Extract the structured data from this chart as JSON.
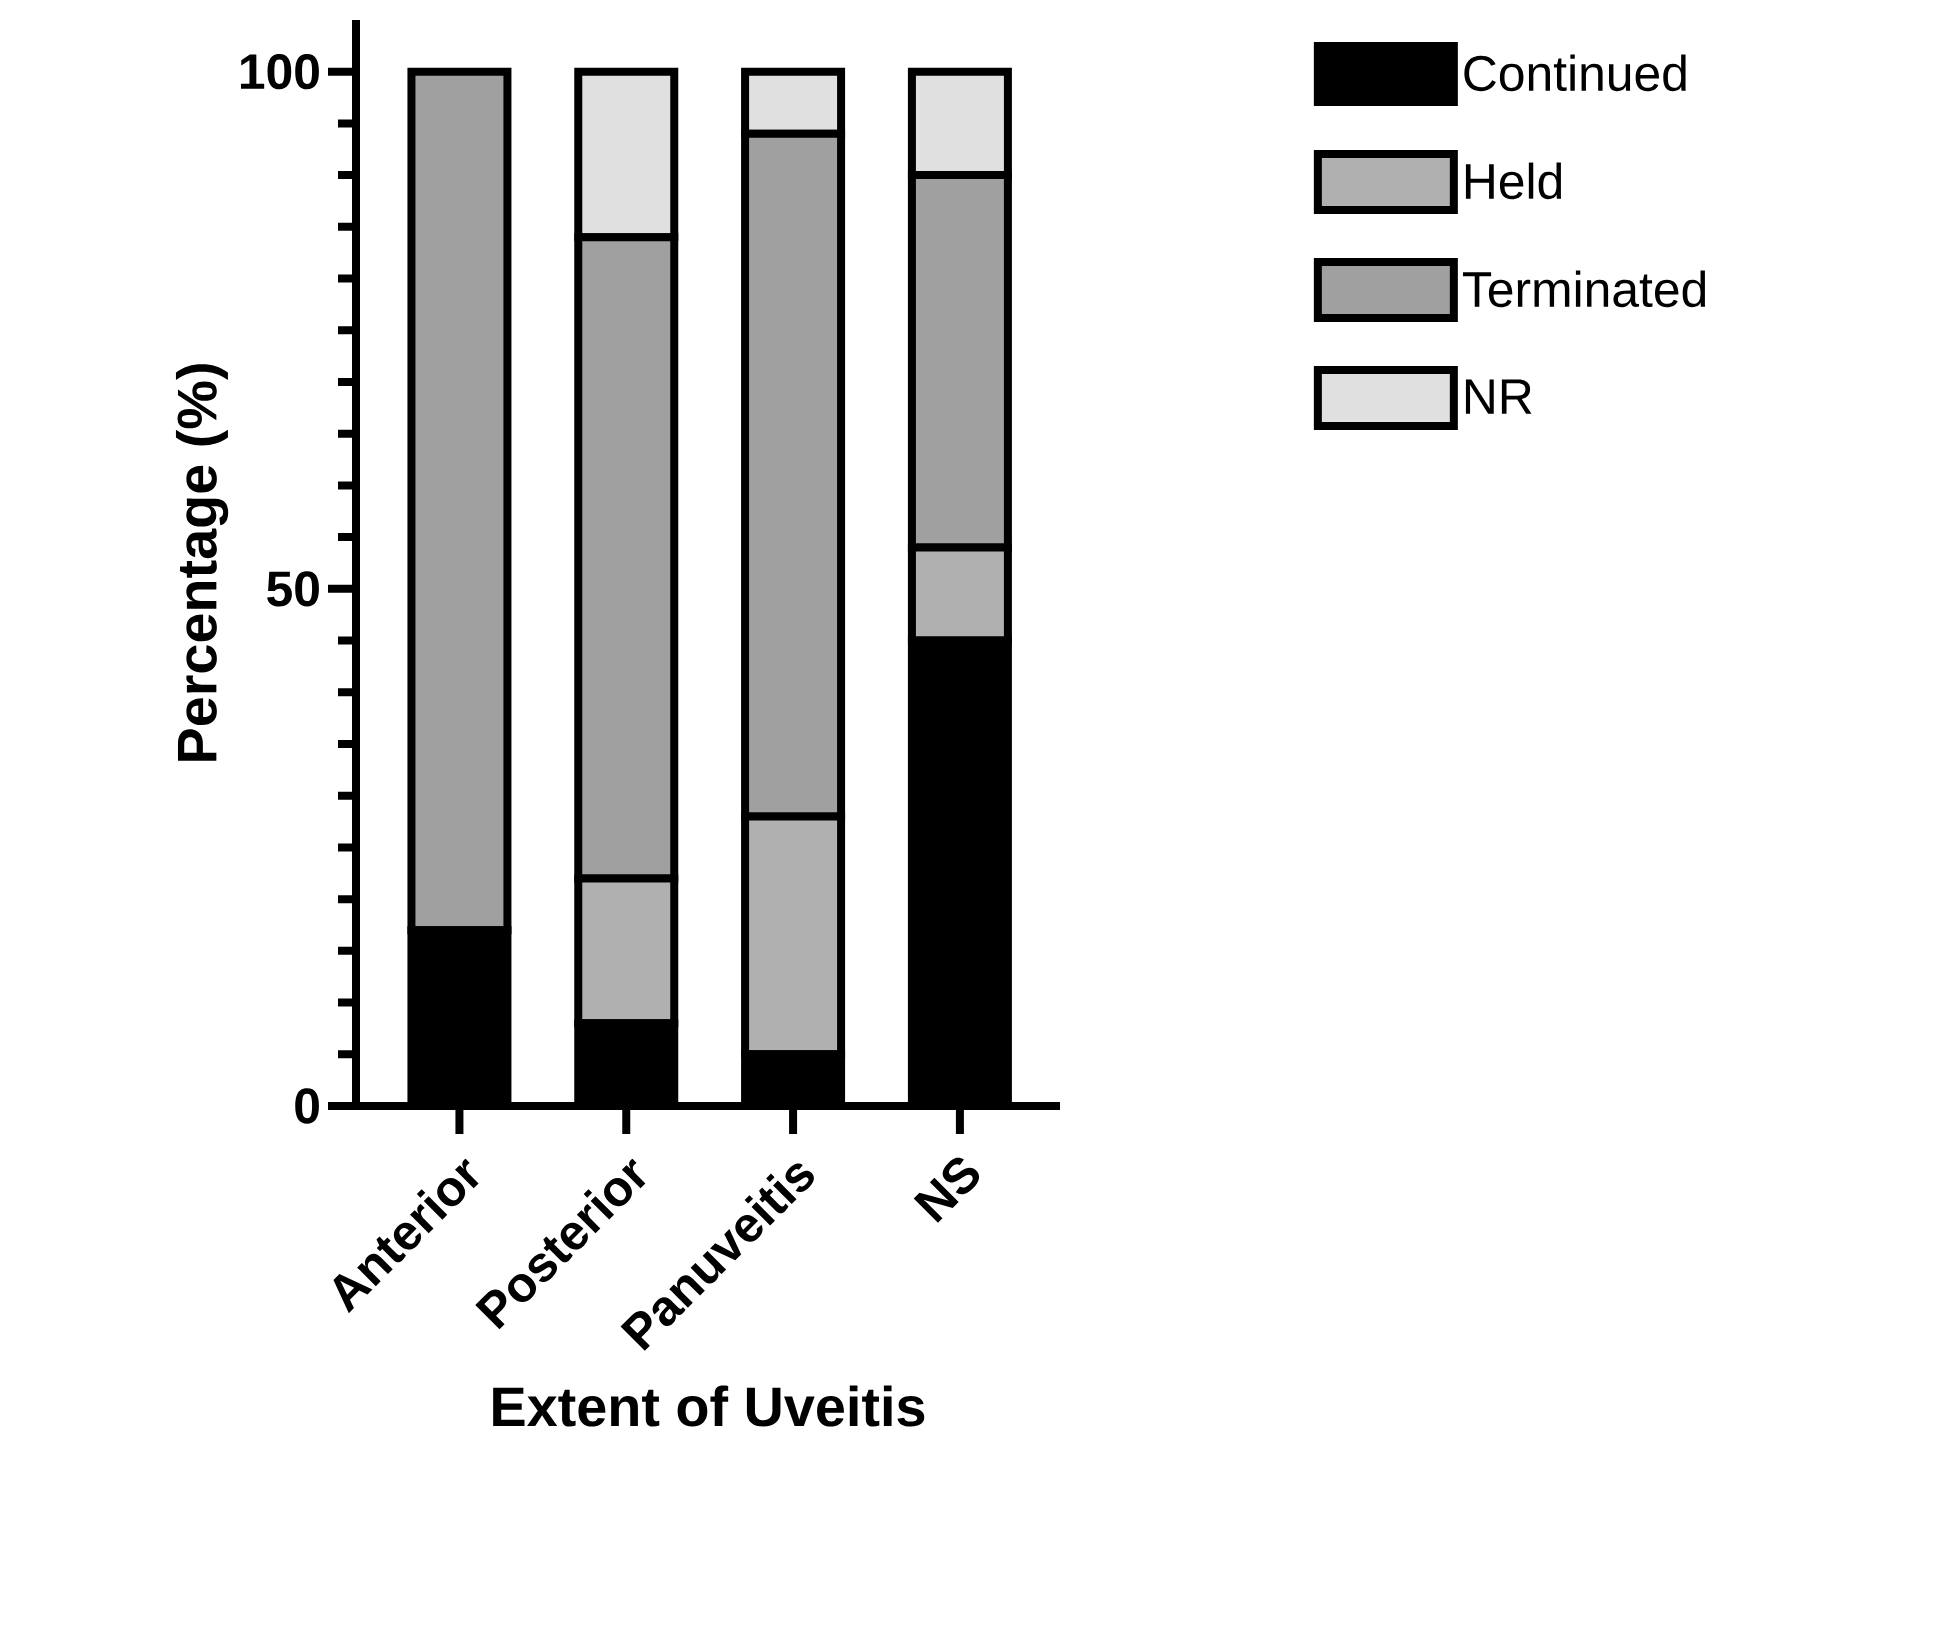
{
  "chart_data": {
    "type": "bar",
    "stacked": true,
    "xlabel": "Extent of Uveitis",
    "ylabel": "Percentage (%)",
    "categories": [
      "Anterior",
      "Posterior",
      "Panuveitis",
      "NS"
    ],
    "series": [
      {
        "name": "Continued",
        "color": "#000000",
        "values": [
          17,
          8,
          5,
          45
        ]
      },
      {
        "name": "Held",
        "color": "#b0b0b0",
        "values": [
          0,
          14,
          23,
          9
        ]
      },
      {
        "name": "Terminated",
        "color": "#a0a0a0",
        "values": [
          83,
          62,
          66,
          36
        ]
      },
      {
        "name": "NR",
        "color": "#e0e0e0",
        "values": [
          0,
          16,
          6,
          10
        ]
      }
    ],
    "ylim": [
      0,
      105
    ],
    "yticks": [
      0,
      50,
      100
    ],
    "grid": false,
    "legend": "top right"
  }
}
